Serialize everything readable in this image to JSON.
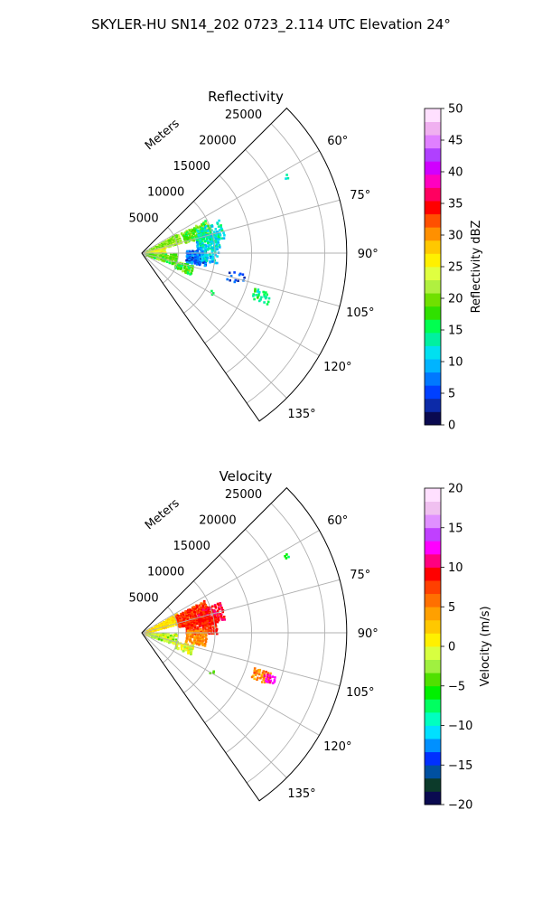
{
  "figure": {
    "suptitle": "SKYLER-HU  SN14_202  0723_2.114 UTC Elevation 24°"
  },
  "chart_data": [
    {
      "type": "heatmap",
      "projection": "polar-sector",
      "title": "Reflectivity",
      "radial_axis_label": "Meters",
      "range_ticks": [
        5000,
        10000,
        15000,
        20000,
        25000
      ],
      "range_tick_labels": [
        "5000",
        "10000",
        "15000",
        "20000",
        "25000"
      ],
      "range_max": 28000,
      "azimuth_range": [
        45,
        145
      ],
      "azimuth_ticks": [
        60,
        75,
        90,
        105,
        120,
        135
      ],
      "azimuth_tick_labels": [
        "60°",
        "75°",
        "90°",
        "105°",
        "120°",
        "135°"
      ],
      "grid": true,
      "colorbar": {
        "label": "Reflectivity dBZ",
        "range": [
          0,
          50
        ],
        "ticks": [
          0,
          5,
          10,
          15,
          20,
          25,
          30,
          35,
          40,
          45,
          50
        ],
        "tick_labels": [
          "0",
          "5",
          "10",
          "15",
          "20",
          "25",
          "30",
          "35",
          "40",
          "45",
          "50"
        ],
        "colors": [
          "#0a0a50",
          "#0c2aa8",
          "#0040ff",
          "#0078ff",
          "#00b4ff",
          "#00e0f0",
          "#00f0a0",
          "#00ff50",
          "#30e000",
          "#70e000",
          "#b0f040",
          "#e0ff40",
          "#fff000",
          "#ffc800",
          "#ff9000",
          "#ff5000",
          "#ff0000",
          "#ff0060",
          "#ff00c0",
          "#d000ff",
          "#b040ff",
          "#e080ff",
          "#f0b0f0",
          "#ffe0ff"
        ]
      },
      "echo_regions": [
        {
          "az": [
            60,
            74
          ],
          "range": [
            300,
            5500
          ],
          "values": [
            18,
            24
          ],
          "density": 0.9
        },
        {
          "az": [
            62,
            75
          ],
          "range": [
            6000,
            9800
          ],
          "values": [
            16,
            22
          ],
          "density": 0.75
        },
        {
          "az": [
            66,
            79
          ],
          "range": [
            8000,
            11500
          ],
          "values": [
            10,
            16
          ],
          "density": 0.55
        },
        {
          "az": [
            73,
            85
          ],
          "range": [
            7500,
            10500
          ],
          "values": [
            8,
            16
          ],
          "density": 0.6
        },
        {
          "az": [
            74,
            88
          ],
          "range": [
            400,
            3000
          ],
          "values": [
            22,
            28
          ],
          "density": 0.9
        },
        {
          "az": [
            86,
            101
          ],
          "range": [
            6000,
            8800
          ],
          "values": [
            3,
            10
          ],
          "density": 0.75
        },
        {
          "az": [
            84,
            97
          ],
          "range": [
            8000,
            10500
          ],
          "values": [
            8,
            14
          ],
          "density": 0.5
        },
        {
          "az": [
            89,
            108
          ],
          "range": [
            500,
            4500
          ],
          "values": [
            16,
            22
          ],
          "density": 0.55
        },
        {
          "az": [
            103,
            113
          ],
          "range": [
            4800,
            7000
          ],
          "values": [
            14,
            22
          ],
          "density": 0.65
        },
        {
          "az": [
            101,
            107
          ],
          "range": [
            12000,
            14500
          ],
          "values": [
            3,
            8
          ],
          "density": 0.25
        },
        {
          "az": [
            107,
            112
          ],
          "range": [
            16000,
            18500
          ],
          "values": [
            12,
            17
          ],
          "density": 0.7
        },
        {
          "az": [
            117,
            120
          ],
          "range": [
            10500,
            11200
          ],
          "values": [
            12,
            16
          ],
          "density": 0.4
        },
        {
          "az": [
            61,
            62
          ],
          "range": [
            22000,
            22400
          ],
          "values": [
            10,
            14
          ],
          "density": 0.5
        }
      ]
    },
    {
      "type": "heatmap",
      "projection": "polar-sector",
      "title": "Velocity",
      "radial_axis_label": "Meters",
      "range_ticks": [
        5000,
        10000,
        15000,
        20000,
        25000
      ],
      "range_tick_labels": [
        "5000",
        "10000",
        "15000",
        "20000",
        "25000"
      ],
      "range_max": 28000,
      "azimuth_range": [
        45,
        145
      ],
      "azimuth_ticks": [
        60,
        75,
        90,
        105,
        120,
        135
      ],
      "azimuth_tick_labels": [
        "60°",
        "75°",
        "90°",
        "105°",
        "120°",
        "135°"
      ],
      "grid": true,
      "colorbar": {
        "label": "Velocity (m/s)",
        "range": [
          -20,
          20
        ],
        "ticks": [
          -20,
          -15,
          -10,
          -5,
          0,
          5,
          10,
          15,
          20
        ],
        "tick_labels": [
          "−20",
          "−15",
          "−10",
          "−5",
          "0",
          "5",
          "10",
          "15",
          "20"
        ],
        "colors": [
          "#0a0a50",
          "#0c3a2a",
          "#0050a0",
          "#0030ff",
          "#0090ff",
          "#00e0ff",
          "#00ffc0",
          "#00ff60",
          "#00f000",
          "#50e000",
          "#a0f040",
          "#d8ff40",
          "#fff000",
          "#ffc800",
          "#ffa000",
          "#ff7000",
          "#ff4000",
          "#ff0000",
          "#ff0080",
          "#ff00ff",
          "#c040ff",
          "#e090ff",
          "#f0c0f0",
          "#ffe0ff"
        ]
      },
      "echo_regions": [
        {
          "az": [
            60,
            75
          ],
          "range": [
            300,
            5500
          ],
          "values": [
            0,
            3
          ],
          "density": 0.9
        },
        {
          "az": [
            62,
            80
          ],
          "range": [
            5000,
            9500
          ],
          "values": [
            6,
            10
          ],
          "density": 0.85
        },
        {
          "az": [
            68,
            82
          ],
          "range": [
            8000,
            11500
          ],
          "values": [
            8,
            11
          ],
          "density": 0.6
        },
        {
          "az": [
            76,
            90
          ],
          "range": [
            6000,
            10000
          ],
          "values": [
            7,
            10
          ],
          "density": 0.7
        },
        {
          "az": [
            86,
            101
          ],
          "range": [
            6000,
            8800
          ],
          "values": [
            3,
            6
          ],
          "density": 0.75
        },
        {
          "az": [
            89,
            108
          ],
          "range": [
            500,
            4500
          ],
          "values": [
            -4,
            1
          ],
          "density": 0.55
        },
        {
          "az": [
            103,
            113
          ],
          "range": [
            4800,
            7000
          ],
          "values": [
            -3,
            2
          ],
          "density": 0.65
        },
        {
          "az": [
            107,
            112
          ],
          "range": [
            16000,
            18500
          ],
          "values": [
            3,
            7
          ],
          "density": 0.7
        },
        {
          "az": [
            108,
            111
          ],
          "range": [
            17500,
            19000
          ],
          "values": [
            11,
            13
          ],
          "density": 0.75
        },
        {
          "az": [
            117,
            120
          ],
          "range": [
            10500,
            11200
          ],
          "values": [
            -6,
            -3
          ],
          "density": 0.4
        },
        {
          "az": [
            61,
            62
          ],
          "range": [
            22000,
            22400
          ],
          "values": [
            -8,
            -6
          ],
          "density": 0.5
        }
      ]
    }
  ]
}
